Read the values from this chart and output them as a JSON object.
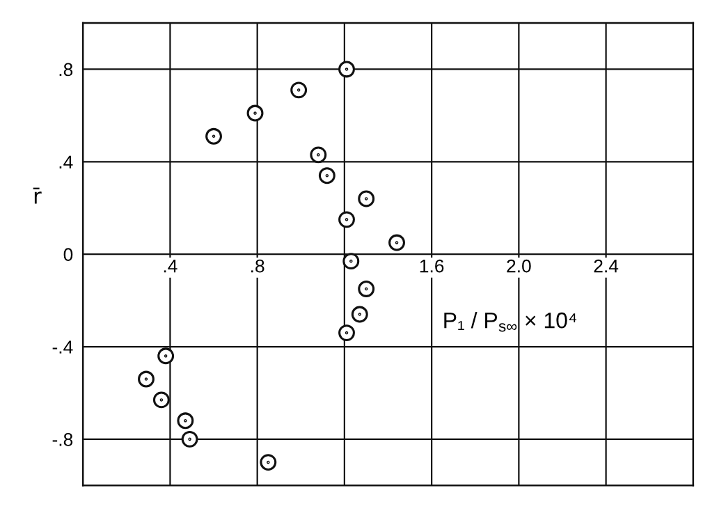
{
  "chart_data": {
    "type": "scatter",
    "xlabel": "P₁ / P$_{s∞}$ × 10⁴",
    "ylabel": "r̄",
    "x": [
      1.21,
      0.99,
      0.79,
      0.6,
      1.08,
      1.12,
      1.3,
      1.21,
      1.44,
      1.23,
      1.3,
      1.27,
      1.21,
      0.38,
      0.29,
      0.36,
      0.47,
      0.49,
      0.85
    ],
    "series": [
      {
        "color": "#111111",
        "values": [
          0.8,
          0.71,
          0.61,
          0.51,
          0.43,
          0.34,
          0.24,
          0.15,
          0.05,
          -0.03,
          -0.15,
          -0.26,
          -0.34,
          -0.44,
          -0.54,
          -0.63,
          -0.72,
          -0.8,
          -0.9
        ]
      }
    ],
    "xlim": [
      0,
      2.8
    ],
    "ylim": [
      -1,
      1
    ],
    "xticks": [
      {
        "value": 0.4,
        "label": ".4"
      },
      {
        "value": 0.8,
        "label": ".8"
      },
      {
        "value": 1.2,
        "label": null
      },
      1.6,
      {
        "value": 2,
        "label": "2.0"
      },
      2.4
    ],
    "yticks": [
      {
        "value": 0.8,
        "label": ".8"
      },
      {
        "value": 0.4,
        "label": ".4"
      },
      0,
      {
        "value": -0.4,
        "label": "-.4"
      },
      {
        "value": -0.8,
        "label": "-.8"
      }
    ],
    "grid": true,
    "marker": "circle"
  }
}
